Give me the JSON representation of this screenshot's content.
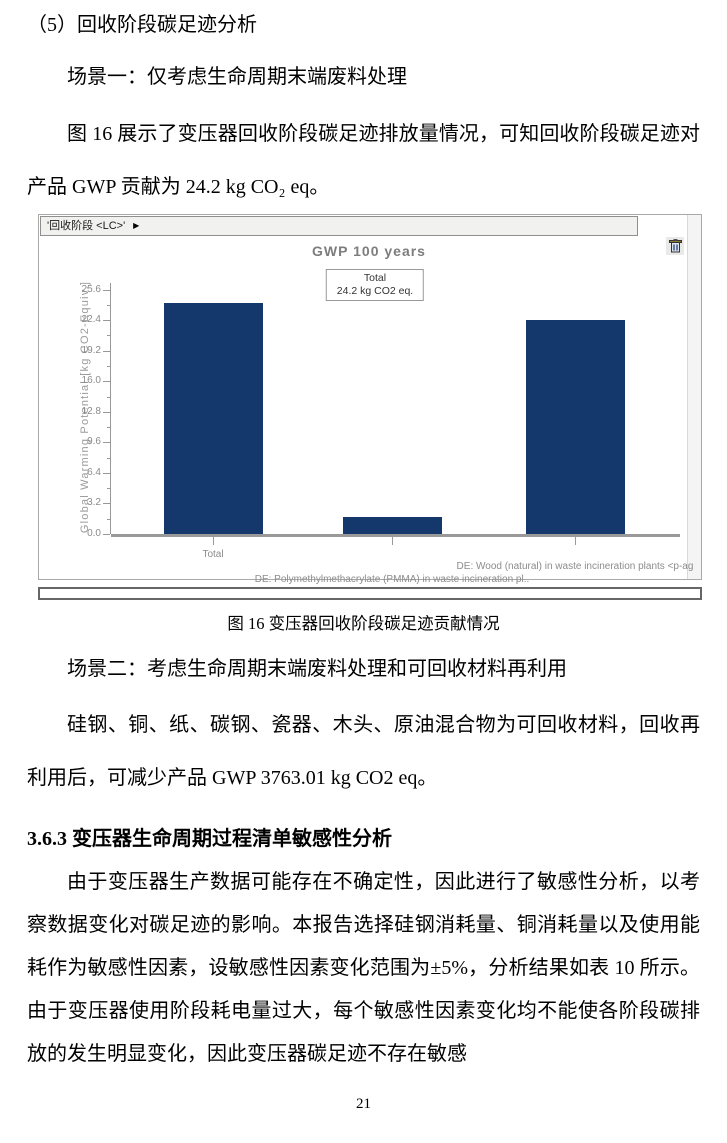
{
  "page": {
    "heading_5": "（5）回收阶段碳足迹分析",
    "scenario1": "场景一：仅考虑生命周期末端废料处理",
    "para_figure16": "图 16 展示了变压器回收阶段碳足迹排放量情况，可知回收阶段碳足迹对产品 GWP 贡献为 24.2 kg CO₂ eq。",
    "figure_caption": "图 16 变压器回收阶段碳足迹贡献情况",
    "scenario2": "场景二：考虑生命周期末端废料处理和可回收材料再利用",
    "para_recyclable": "硅钢、铜、纸、碳钢、瓷器、木头、原油混合物为可回收材料，回收再利用后，可减少产品 GWP 3763.01 kg CO2 eq。",
    "heading_363": "3.6.3 变压器生命周期过程清单敏感性分析",
    "para_sensitivity": "由于变压器生产数据可能存在不确定性，因此进行了敏感性分析，以考察数据变化对碳足迹的影响。本报告选择硅钢消耗量、铜消耗量以及使用能耗作为敏感性因素，设敏感性因素变化范围为±5%，分析结果如表 10 所示。由于变压器使用阶段耗电量过大，每个敏感性因素变化均不能使各阶段碳排放的发生明显变化，因此变压器碳足迹不存在敏感",
    "page_number": "21"
  },
  "chart_widget": {
    "tab_label": "'回收阶段 <LC>'",
    "tab_arrow": "▶",
    "trash_icon": "trash-icon",
    "annotation": {
      "line1": "Total",
      "line2": "24.2 kg CO2 eq."
    }
  },
  "chart_data": {
    "type": "bar",
    "title": "GWP 100 years",
    "xlabel": "",
    "ylabel": "Global Warming Potential [kg CO2-Equiv.]",
    "categories": [
      "Total",
      "DE: Polymethylmethacrylate (PMMA) in waste incineration pl..",
      "DE: Wood (natural) in waste incineration plants <p-ag"
    ],
    "values": [
      24.2,
      1.8,
      22.4
    ],
    "yticks": [
      0,
      3.2,
      6.4,
      9.6,
      12.8,
      16,
      19.2,
      22.4,
      25.6
    ],
    "ylim": [
      0,
      26.3
    ],
    "grid": false,
    "legend": "none",
    "bar_color": "#14386b",
    "axis_color": "#999999",
    "annotation_text": "Total 24.2 kg CO2 eq."
  }
}
